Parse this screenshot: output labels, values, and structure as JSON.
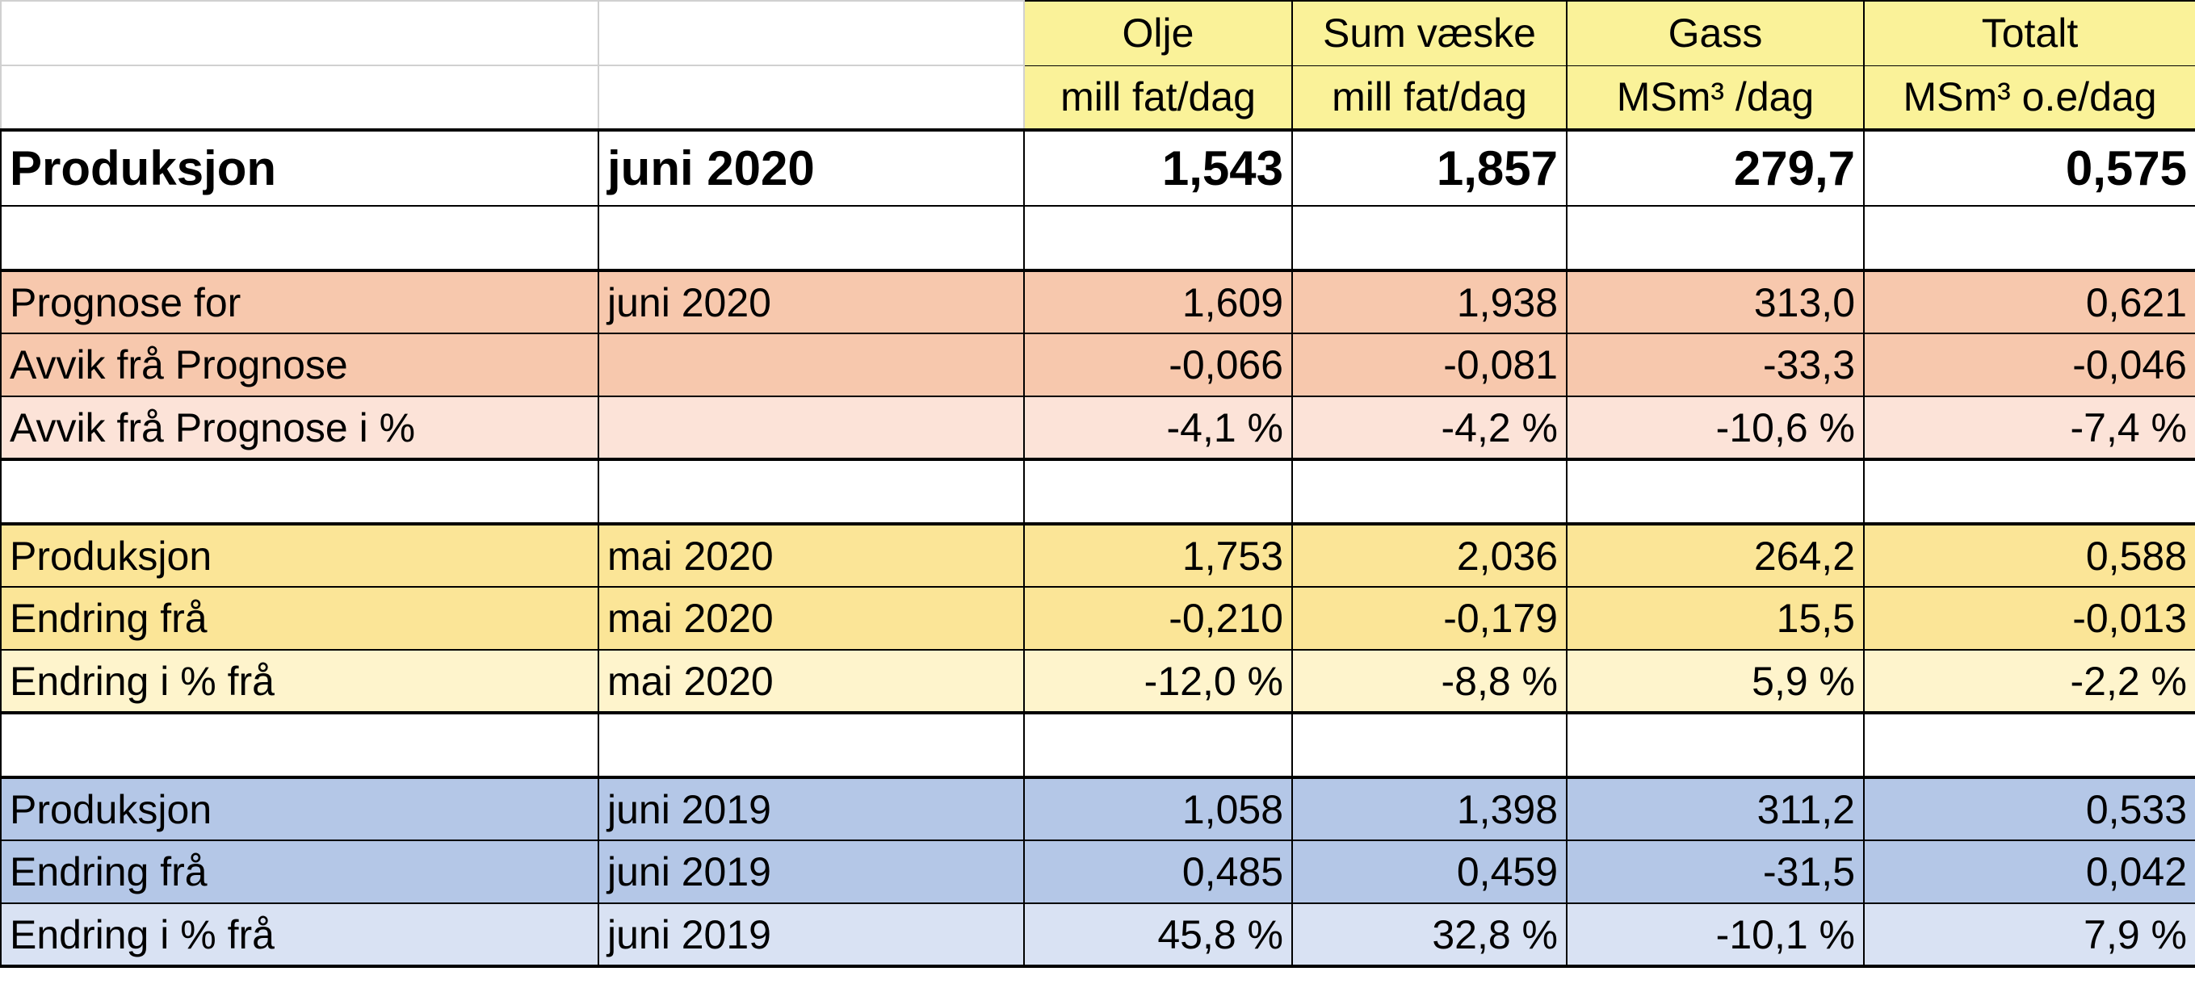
{
  "header": {
    "columns": [
      {
        "name": "Olje",
        "unit": "mill fat/dag"
      },
      {
        "name": "Sum væske",
        "unit": "mill fat/dag"
      },
      {
        "name": "Gass",
        "unit": "MSm³ /dag"
      },
      {
        "name": "Totalt",
        "unit": "MSm³ o.e/dag"
      }
    ]
  },
  "main_row": {
    "label": "Produksjon",
    "period": "juni 2020",
    "values": [
      "1,543",
      "1,857",
      "279,7",
      "0,575"
    ]
  },
  "forecast_group": [
    {
      "label": "Prognose for",
      "period": "juni 2020",
      "values": [
        "1,609",
        "1,938",
        "313,0",
        "0,621"
      ]
    },
    {
      "label": "Avvik frå Prognose",
      "period": "",
      "values": [
        "-0,066",
        "-0,081",
        "-33,3",
        "-0,046"
      ]
    },
    {
      "label": "Avvik frå Prognose i %",
      "period": "",
      "values": [
        "-4,1 %",
        "-4,2 %",
        "-10,6 %",
        "-7,4 %"
      ]
    }
  ],
  "prev_month_group": [
    {
      "label": "Produksjon",
      "period": "mai 2020",
      "values": [
        "1,753",
        "2,036",
        "264,2",
        "0,588"
      ]
    },
    {
      "label": "Endring frå",
      "period": "mai 2020",
      "values": [
        "-0,210",
        "-0,179",
        "15,5",
        "-0,013"
      ]
    },
    {
      "label": "Endring i % frå",
      "period": "mai 2020",
      "values": [
        "-12,0 %",
        "-8,8 %",
        "5,9 %",
        "-2,2 %"
      ]
    }
  ],
  "prev_year_group": [
    {
      "label": "Produksjon",
      "period": "juni 2019",
      "values": [
        "1,058",
        "1,398",
        "311,2",
        "0,533"
      ]
    },
    {
      "label": "Endring frå",
      "period": "juni 2019",
      "values": [
        "0,485",
        "0,459",
        "-31,5",
        "0,042"
      ]
    },
    {
      "label": "Endring i % frå",
      "period": "juni 2019",
      "values": [
        "45,8 %",
        "32,8 %",
        "-10,1 %",
        "7,9 %"
      ]
    }
  ],
  "colors": {
    "header_yellow": "#faf299",
    "forecast": "#f7c8ad",
    "forecast_light": "#fce3d8",
    "prev_month": "#fbe597",
    "prev_month_light": "#fef4cc",
    "prev_year": "#b4c7e7",
    "prev_year_light": "#d9e2f3"
  }
}
